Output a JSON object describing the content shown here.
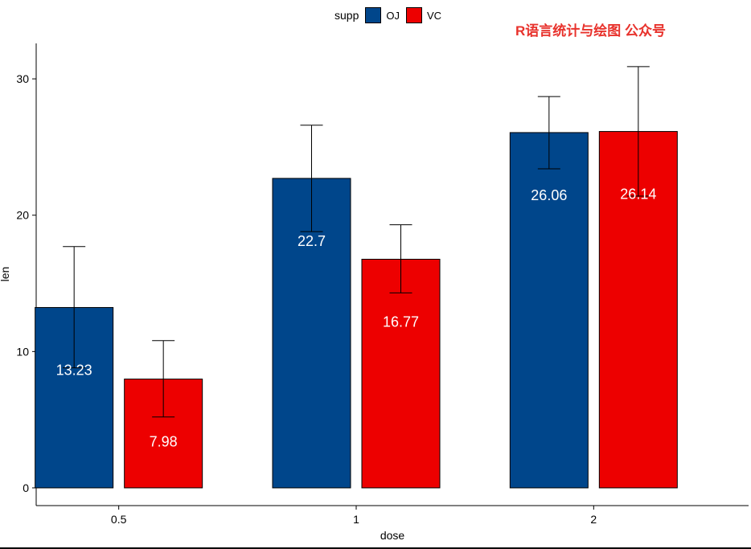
{
  "chart_data": {
    "type": "bar",
    "xlabel": "dose",
    "ylabel": "len",
    "categories": [
      "0.5",
      "1",
      "2"
    ],
    "ylim": [
      -1.3,
      32.6
    ],
    "yticks": [
      0,
      10,
      20,
      30
    ],
    "grid": false,
    "legend": {
      "title": "supp",
      "position": "top"
    },
    "series": [
      {
        "name": "OJ",
        "color": "#00468b",
        "values": [
          13.23,
          22.7,
          26.06
        ],
        "error_low": [
          8.8,
          18.8,
          23.4
        ],
        "error_high": [
          17.7,
          26.6,
          28.7
        ],
        "labels": [
          "13.23",
          "22.7",
          "26.06"
        ]
      },
      {
        "name": "VC",
        "color": "#ed0000",
        "values": [
          7.98,
          16.77,
          26.14
        ],
        "error_low": [
          5.2,
          14.3,
          21.4
        ],
        "error_high": [
          10.8,
          19.3,
          30.9
        ],
        "labels": [
          "7.98",
          "16.77",
          "26.14"
        ]
      }
    ]
  },
  "watermark": "R语言统计与绘图 公众号"
}
